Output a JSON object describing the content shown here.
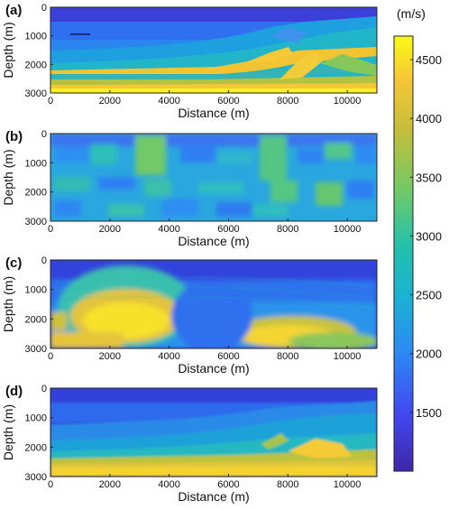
{
  "chart_data": [
    {
      "type": "heatmap",
      "panel_label": "(a)",
      "title": "",
      "xlabel": "Distance (m)",
      "ylabel": "Depth (m)",
      "xlim": [
        0,
        11000
      ],
      "ylim": [
        3000,
        0
      ],
      "x_ticks": [
        "0",
        "2000",
        "4000",
        "6000",
        "8000",
        "10000"
      ],
      "y_ticks": [
        "0",
        "1000",
        "2000",
        "3000"
      ],
      "description_values": {
        "velocity_min_m_s": 1500,
        "velocity_max_m_s": 4700,
        "structure": "layered Marmousi-type model with faulted anticline around 6000–10000 m"
      }
    },
    {
      "type": "heatmap",
      "panel_label": "(b)",
      "title": "",
      "xlabel": "Distance (m)",
      "ylabel": "Depth (m)",
      "xlim": [
        0,
        11000
      ],
      "ylim": [
        3000,
        0
      ],
      "x_ticks": [
        "0",
        "2000",
        "4000",
        "6000",
        "8000",
        "10000"
      ],
      "y_ticks": [
        "0",
        "1000",
        "2000",
        "3000"
      ],
      "description_values": {
        "velocity_min_m_s": 2000,
        "velocity_max_m_s": 3400,
        "structure": "blocky smooth initial model"
      }
    },
    {
      "type": "heatmap",
      "panel_label": "(c)",
      "title": "",
      "xlabel": "Distance (m)",
      "ylabel": "Depth (m)",
      "xlim": [
        0,
        11000
      ],
      "ylim": [
        3000,
        0
      ],
      "x_ticks": [
        "0",
        "2000",
        "4000",
        "6000",
        "8000",
        "10000"
      ],
      "y_ticks": [
        "0",
        "1000",
        "2000",
        "3000"
      ],
      "description_values": {
        "velocity_min_m_s": 1500,
        "velocity_max_m_s": 4700,
        "structure": "high-velocity bodies near 1000–4500 m and 6500–10000 m"
      }
    },
    {
      "type": "heatmap",
      "panel_label": "(d)",
      "title": "",
      "xlabel": "Distance (m)",
      "ylabel": "Depth (m)",
      "xlim": [
        0,
        11000
      ],
      "ylim": [
        3000,
        0
      ],
      "x_ticks": [
        "0",
        "2000",
        "4000",
        "6000",
        "8000",
        "10000"
      ],
      "y_ticks": [
        "0",
        "1000",
        "2000",
        "3000"
      ],
      "description_values": {
        "velocity_min_m_s": 1500,
        "velocity_max_m_s": 4600,
        "structure": "smoothed layered model resembling (a)"
      }
    }
  ],
  "colorbar": {
    "unit": "(m/s)",
    "vmin": 1000,
    "vmax": 4700,
    "ticks": [
      "1500",
      "2000",
      "2500",
      "3000",
      "3500",
      "4000",
      "4500"
    ],
    "colors": [
      "#3e26a8",
      "#4247f0",
      "#2d88f5",
      "#1ab2d3",
      "#23c1aa",
      "#74c964",
      "#c3be3a",
      "#f7c636",
      "#f9fb15"
    ]
  }
}
